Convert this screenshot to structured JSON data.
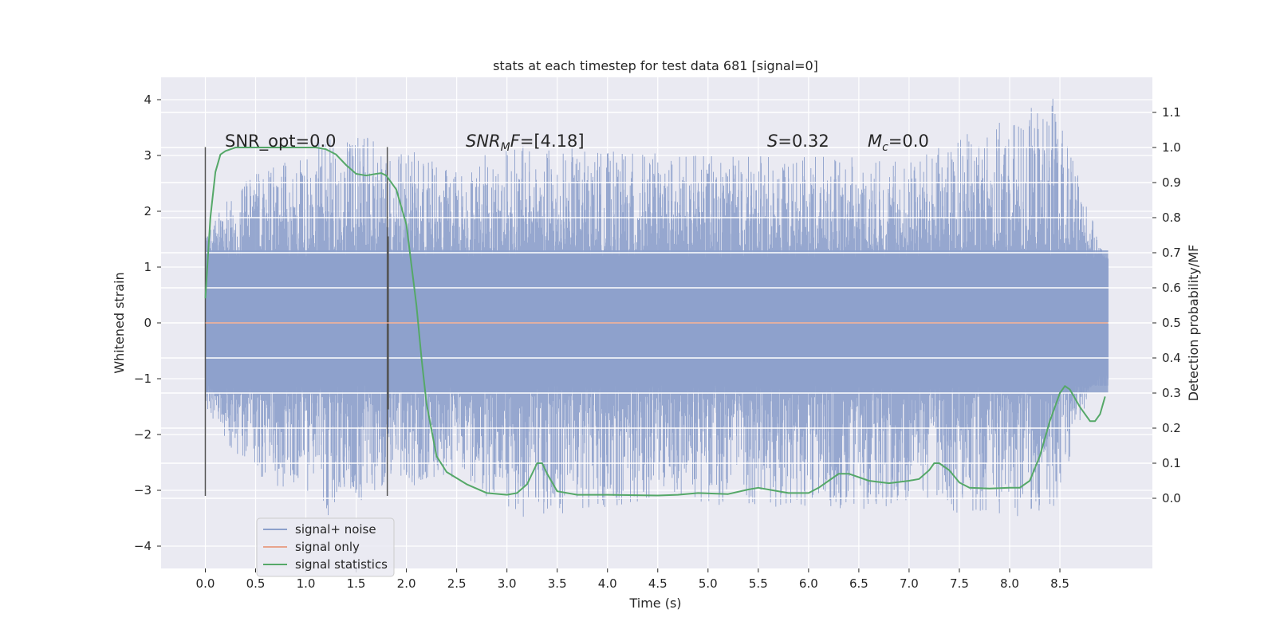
{
  "chart_data": {
    "type": "line",
    "title": "stats at each timestep for test data 681 [signal=0]",
    "xlabel": "Time (s)",
    "ylabel_left": "Whitened strain",
    "ylabel_right": "Detection probability/MF",
    "xlim": [
      -0.44,
      9.42
    ],
    "ylim_left": [
      -4.4,
      4.4
    ],
    "ylim_right": [
      -0.2,
      1.2
    ],
    "xticks": [
      0.0,
      0.5,
      1.0,
      1.5,
      2.0,
      2.5,
      3.0,
      3.5,
      4.0,
      4.5,
      5.0,
      5.5,
      6.0,
      6.5,
      7.0,
      7.5,
      8.0,
      8.5
    ],
    "xtick_labels": [
      "0.0",
      "0.5",
      "1.0",
      "1.5",
      "2.0",
      "2.5",
      "3.0",
      "3.5",
      "4.0",
      "4.5",
      "5.0",
      "5.5",
      "6.0",
      "6.5",
      "7.0",
      "7.5",
      "8.0",
      "8.5"
    ],
    "yticks_left": [
      -4,
      -3,
      -2,
      -1,
      0,
      1,
      2,
      3,
      4
    ],
    "ytick_labels_left": [
      "−4",
      "−3",
      "−2",
      "−1",
      "0",
      "1",
      "2",
      "3",
      "4"
    ],
    "yticks_right": [
      0.0,
      0.1,
      0.2,
      0.3,
      0.4,
      0.5,
      0.6,
      0.7,
      0.8,
      0.9,
      1.0,
      1.1
    ],
    "ytick_labels_right": [
      "0.0",
      "0.1",
      "0.2",
      "0.3",
      "0.4",
      "0.5",
      "0.6",
      "0.7",
      "0.8",
      "0.9",
      "1.0",
      "1.1"
    ],
    "grid": true,
    "legend_position": "lower-left",
    "series": [
      {
        "name": "signal+ noise",
        "axis": "left",
        "color": "#8da0cb",
        "x_range": [
          0.0,
          8.98
        ],
        "band_min": -1.25,
        "band_max": 1.3,
        "peak_envelope": [
          {
            "t": 0.0,
            "max": 1.85,
            "min": -1.6
          },
          {
            "t": 0.5,
            "max": 2.7,
            "min": -2.9
          },
          {
            "t": 1.0,
            "max": 3.0,
            "min": -3.0
          },
          {
            "t": 1.2,
            "max": 3.45,
            "min": -3.5
          },
          {
            "t": 1.7,
            "max": 3.3,
            "min": -3.1
          },
          {
            "t": 2.5,
            "max": 2.8,
            "min": -2.8
          },
          {
            "t": 3.0,
            "max": 3.2,
            "min": -3.55
          },
          {
            "t": 4.5,
            "max": 3.05,
            "min": -3.2
          },
          {
            "t": 5.5,
            "max": 3.0,
            "min": -3.3
          },
          {
            "t": 7.0,
            "max": 2.95,
            "min": -3.35
          },
          {
            "t": 8.43,
            "max": 4.02,
            "min": -3.5
          },
          {
            "t": 8.98,
            "max": 1.0,
            "min": -0.1
          }
        ]
      },
      {
        "name": "signal only",
        "axis": "left",
        "color": "#e8a48c",
        "x": [
          0.0,
          8.98
        ],
        "y": [
          0.0,
          0.0
        ]
      },
      {
        "name": "signal statistics",
        "axis": "right",
        "color": "#55a868",
        "x": [
          0.0,
          0.05,
          0.1,
          0.15,
          0.2,
          0.3,
          0.5,
          0.8,
          1.0,
          1.1,
          1.2,
          1.3,
          1.4,
          1.5,
          1.6,
          1.7,
          1.75,
          1.8,
          1.9,
          2.0,
          2.1,
          2.15,
          2.2,
          2.3,
          2.4,
          2.6,
          2.8,
          3.0,
          3.1,
          3.2,
          3.3,
          3.35,
          3.4,
          3.5,
          3.7,
          4.0,
          4.5,
          4.7,
          4.9,
          5.2,
          5.4,
          5.5,
          5.6,
          5.8,
          6.0,
          6.1,
          6.2,
          6.3,
          6.4,
          6.6,
          6.8,
          7.0,
          7.1,
          7.2,
          7.25,
          7.3,
          7.4,
          7.5,
          7.6,
          7.8,
          8.0,
          8.1,
          8.2,
          8.3,
          8.4,
          8.5,
          8.55,
          8.6,
          8.7,
          8.8,
          8.85,
          8.9,
          8.95
        ],
        "y": [
          0.57,
          0.8,
          0.93,
          0.98,
          0.99,
          1.0,
          1.0,
          1.0,
          1.0,
          1.0,
          0.995,
          0.98,
          0.95,
          0.925,
          0.92,
          0.925,
          0.927,
          0.92,
          0.88,
          0.78,
          0.55,
          0.4,
          0.27,
          0.12,
          0.075,
          0.04,
          0.015,
          0.01,
          0.015,
          0.04,
          0.1,
          0.1,
          0.07,
          0.02,
          0.01,
          0.01,
          0.008,
          0.01,
          0.015,
          0.012,
          0.025,
          0.03,
          0.025,
          0.015,
          0.015,
          0.03,
          0.05,
          0.07,
          0.07,
          0.05,
          0.043,
          0.05,
          0.055,
          0.08,
          0.1,
          0.1,
          0.08,
          0.045,
          0.03,
          0.028,
          0.03,
          0.03,
          0.05,
          0.12,
          0.22,
          0.3,
          0.32,
          0.31,
          0.26,
          0.22,
          0.22,
          0.24,
          0.29
        ]
      }
    ],
    "vertical_markers": [
      {
        "x": 0.0,
        "y_top": 3.15,
        "y_bottom": -3.1
      },
      {
        "x": 1.81,
        "y_top": 3.15,
        "y_bottom": -3.1
      },
      {
        "x": 1.82,
        "y_top": 1.55,
        "y_bottom": -1.55
      }
    ],
    "annotations": [
      {
        "id": "snr-opt",
        "text": "SNR_opt=0.0"
      },
      {
        "id": "snr-mf",
        "sym": "SNR",
        "sub": "M",
        "rest": "F=[4.18]"
      },
      {
        "id": "s",
        "sym": "S",
        "rest": "=0.32"
      },
      {
        "id": "mc",
        "sym": "M",
        "sub": "c",
        "rest": "=0.0"
      }
    ],
    "legend": [
      "signal+ noise",
      "signal only",
      "signal statistics"
    ]
  }
}
